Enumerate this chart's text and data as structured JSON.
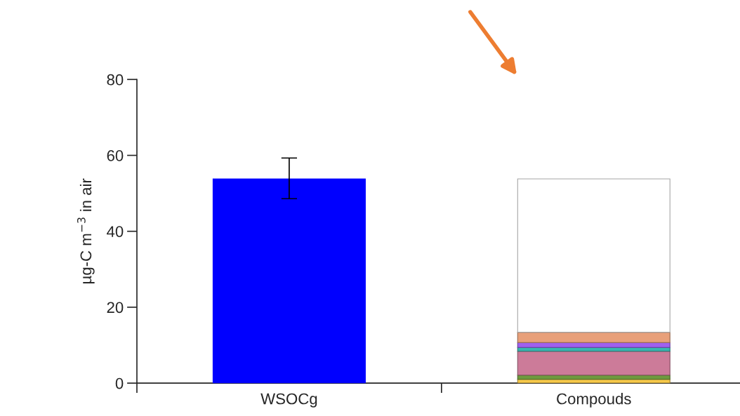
{
  "chart_data": {
    "type": "bar",
    "stacked": true,
    "ylabel": "µg-C m$^{−3}$ in air",
    "categories": [
      "WSOCg",
      "Compouds"
    ],
    "series": [
      {
        "color": "#0000ff",
        "values": [
          53.8,
          null
        ],
        "errors": [
          [
            48.6,
            59.3
          ],
          null
        ]
      },
      {
        "color": "#f7c94a",
        "values": [
          null,
          1.0
        ]
      },
      {
        "color": "#6e9a3e",
        "values": [
          null,
          1.1
        ]
      },
      {
        "color": "#cc7b99",
        "values": [
          null,
          6.3
        ]
      },
      {
        "color": "#3ab5b0",
        "values": [
          null,
          1.0
        ]
      },
      {
        "color": "#a060f0",
        "values": [
          null,
          1.3
        ]
      },
      {
        "color": "#e8a07a",
        "values": [
          null,
          2.7
        ]
      },
      {
        "color": "#ffffff",
        "values": [
          null,
          40.4
        ]
      }
    ],
    "ylim": [
      0,
      80
    ],
    "yticks": [
      0,
      20,
      40,
      60,
      80
    ],
    "grid": false,
    "legend": false
  }
}
